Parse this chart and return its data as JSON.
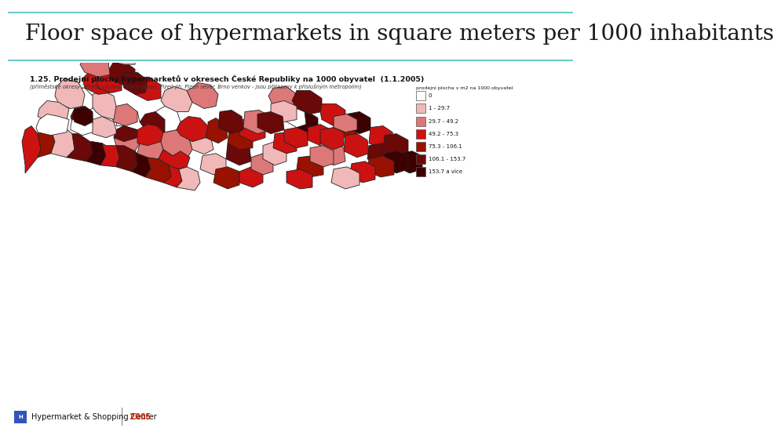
{
  "title": "Floor space of hypermarkets in square meters per 1000 inhabitants",
  "title_fontsize": 20,
  "title_color": "#1a1a1a",
  "title_font": "serif",
  "background_color": "#ffffff",
  "header_line_color": "#4dbfbf",
  "map_title": "1.25. Prodejní plochy hypermarketů v okresech České Republiky na 1000 obyvatel  (1.1.2005)",
  "map_subtitle": "(příměstské okresy - Praha východ, Praha západ, Plzeň jih, Plzeň sever, Brno venkov - jsou přiřazeny k příslušným metropolím)",
  "legend_title": "prodejní plocha v m2 na 1000 obyvatel",
  "legend_entries": [
    {
      "label": "0",
      "color": "#ffffff"
    },
    {
      "label": "1 - 29.7",
      "color": "#f0b8b8"
    },
    {
      "label": "29.7 - 49.2",
      "color": "#dc7878"
    },
    {
      "label": "49.2 - 75.3",
      "color": "#cc1111"
    },
    {
      "label": "75.3 - 106.1",
      "color": "#991100"
    },
    {
      "label": "106.1 - 153.7",
      "color": "#6b0808"
    },
    {
      "label": "153.7 a více",
      "color": "#3d0000"
    }
  ],
  "footer_text": "Hypermarket & Shopping Center",
  "footer_year": "2005",
  "footer_year_color": "#cc2200",
  "map_bg": "#ffffff",
  "outer_bg": "#f8f8f8"
}
